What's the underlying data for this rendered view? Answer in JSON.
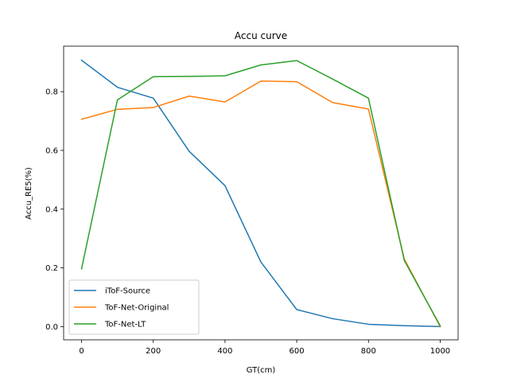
{
  "chart_data": {
    "type": "line",
    "title": "Accu curve",
    "xlabel": "GT(cm)",
    "ylabel": "Accu_RE5(%)",
    "xlim": [
      -50,
      1050
    ],
    "ylim": [
      -0.045,
      0.955
    ],
    "x": [
      0,
      100,
      200,
      300,
      400,
      500,
      600,
      700,
      800,
      900,
      1000
    ],
    "xticks": [
      0,
      200,
      400,
      600,
      800,
      1000
    ],
    "yticks": [
      0.0,
      0.2,
      0.4,
      0.6,
      0.8
    ],
    "xtick_labels": [
      "0",
      "200",
      "400",
      "600",
      "800",
      "1000"
    ],
    "ytick_labels": [
      "0.0",
      "0.2",
      "0.4",
      "0.6",
      "0.8"
    ],
    "grid": false,
    "legend_position": "lower-left",
    "series": [
      {
        "name": "iToF-Source",
        "color": "#1f77b4",
        "values": [
          0.907,
          0.815,
          0.778,
          0.597,
          0.48,
          0.22,
          0.058,
          0.027,
          0.008,
          0.003,
          0.0
        ]
      },
      {
        "name": "ToF-Net-Original",
        "color": "#ff7f0e",
        "values": [
          0.706,
          0.74,
          0.746,
          0.785,
          0.765,
          0.836,
          0.834,
          0.763,
          0.741,
          0.23,
          0.0
        ]
      },
      {
        "name": "ToF-Net-LT",
        "color": "#2ca02c",
        "values": [
          0.197,
          0.772,
          0.851,
          0.852,
          0.854,
          0.891,
          0.906,
          0.843,
          0.778,
          0.225,
          0.003
        ]
      }
    ]
  }
}
